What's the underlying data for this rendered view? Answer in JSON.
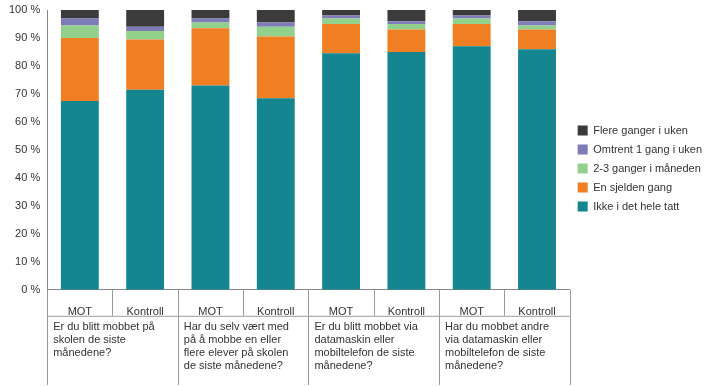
{
  "chart_data": {
    "type": "bar",
    "stacked": true,
    "grid": false,
    "legend": "right",
    "categories": [
      "MOT",
      "Kontroll",
      "MOT",
      "Kontroll",
      "MOT",
      "Kontroll",
      "MOT",
      "Kontroll"
    ],
    "category_groups": [
      "Er du blitt mobbet på skolen de siste månedene?",
      "Har du selv vært med på å mobbe en eller flere elever på skolen de siste månedene?",
      "Er du blitt mobbet via datamaskin eller mobiltelefon de siste månedene?",
      "Har du mobbet andre via datamaskin eller mobiltelefon de siste månedene?"
    ],
    "series": [
      {
        "name": "Ikke i det hele tatt",
        "color": "#15868f",
        "values": [
          67.5,
          71.5,
          73,
          68.5,
          84.5,
          85,
          87,
          86
        ]
      },
      {
        "name": "En sjelden gang",
        "color": "#ef7f22",
        "values": [
          22.5,
          18,
          20.5,
          22,
          10.5,
          8,
          8,
          7
        ]
      },
      {
        "name": "2-3 ganger i måneden",
        "color": "#92d18b",
        "values": [
          4.5,
          3,
          2,
          3.5,
          2,
          2,
          2,
          1.5
        ]
      },
      {
        "name": "Omtrent 1 gang i uken",
        "color": "#7e7cb8",
        "values": [
          2.5,
          1.5,
          1.5,
          1.5,
          1,
          1,
          1,
          1.5
        ]
      },
      {
        "name": "Flere ganger i uken",
        "color": "#3b3b3b",
        "values": [
          3,
          6,
          3,
          4.5,
          2,
          4,
          2,
          4
        ]
      }
    ],
    "ylim": [
      0,
      100
    ],
    "yticks": [
      {
        "value": 0,
        "label": "0 %"
      },
      {
        "value": 10,
        "label": "10 %"
      },
      {
        "value": 20,
        "label": "20 %"
      },
      {
        "value": 30,
        "label": "30 %"
      },
      {
        "value": 40,
        "label": "40 %"
      },
      {
        "value": 50,
        "label": "50 %"
      },
      {
        "value": 60,
        "label": "60 %"
      },
      {
        "value": 70,
        "label": "70 %"
      },
      {
        "value": 80,
        "label": "80 %"
      },
      {
        "value": 90,
        "label": "90 %"
      },
      {
        "value": 100,
        "label": "100 %"
      }
    ]
  }
}
